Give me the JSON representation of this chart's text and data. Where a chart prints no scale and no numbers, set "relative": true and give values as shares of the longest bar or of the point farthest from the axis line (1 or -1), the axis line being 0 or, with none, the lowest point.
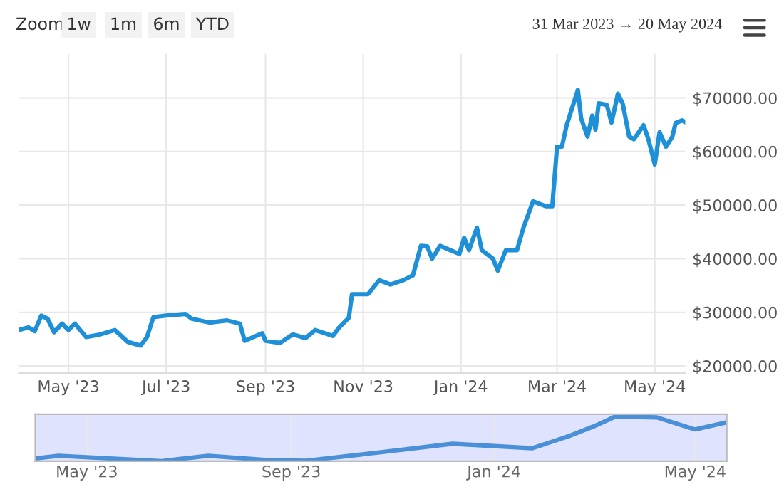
{
  "chart_data": [
    {
      "type": "line",
      "annotations": [
        "Zoom",
        "1w",
        "1m",
        "6m",
        "YTD",
        "31 Mar 2023 → 20 May 2024"
      ],
      "series": [
        {
          "color": "#1e90d8",
          "x": [
            "2023-03-31",
            "2023-04-06",
            "2023-04-10",
            "2023-04-14",
            "2023-04-18",
            "2023-04-22",
            "2023-04-27",
            "2023-05-01",
            "2023-05-05",
            "2023-05-12",
            "2023-05-21",
            "2023-05-30",
            "2023-06-07",
            "2023-06-15",
            "2023-06-19",
            "2023-06-23",
            "2023-07-01",
            "2023-07-13",
            "2023-07-17",
            "2023-07-28",
            "2023-08-08",
            "2023-08-16",
            "2023-08-19",
            "2023-08-30",
            "2023-09-01",
            "2023-09-10",
            "2023-09-18",
            "2023-09-26",
            "2023-10-02",
            "2023-10-13",
            "2023-10-17",
            "2023-10-23",
            "2023-10-25",
            "2023-11-04",
            "2023-11-11",
            "2023-11-18",
            "2023-11-26",
            "2023-12-02",
            "2023-12-07",
            "2023-12-11",
            "2023-12-14",
            "2023-12-19",
            "2023-12-31",
            "2024-01-03",
            "2024-01-06",
            "2024-01-11",
            "2024-01-14",
            "2024-01-21",
            "2024-01-24",
            "2024-01-29",
            "2024-02-05",
            "2024-02-09",
            "2024-02-15",
            "2024-02-23",
            "2024-02-27",
            "2024-03-01",
            "2024-03-04",
            "2024-03-07",
            "2024-03-14",
            "2024-03-16",
            "2024-03-20",
            "2024-03-23",
            "2024-03-25",
            "2024-03-27",
            "2024-04-01",
            "2024-04-04",
            "2024-04-08",
            "2024-04-11",
            "2024-04-15",
            "2024-04-18",
            "2024-04-24",
            "2024-04-27",
            "2024-05-01",
            "2024-05-04",
            "2024-05-08",
            "2024-05-12",
            "2024-05-14",
            "2024-05-18",
            "2024-05-20"
          ],
          "values": [
            26700,
            27200,
            26500,
            29400,
            28800,
            26300,
            27900,
            26700,
            27900,
            25400,
            25900,
            26700,
            24500,
            23800,
            25400,
            29100,
            29400,
            29700,
            28800,
            28100,
            28500,
            27900,
            24700,
            26100,
            24700,
            24300,
            25900,
            25200,
            26700,
            25600,
            27200,
            29000,
            33400,
            33400,
            36000,
            35200,
            36000,
            36900,
            42400,
            42300,
            40000,
            42400,
            40900,
            43900,
            41600,
            45800,
            41600,
            40000,
            37800,
            41600,
            41600,
            45800,
            50700,
            49800,
            49800,
            60900,
            60900,
            64900,
            71500,
            66200,
            62800,
            66700,
            64100,
            69000,
            68700,
            65400,
            70800,
            68900,
            62800,
            62300,
            64900,
            62300,
            57600,
            63600,
            60900,
            62800,
            65300,
            65800,
            65500
          ]
        }
      ],
      "xlim": [
        "2023-03-31",
        "2024-05-20"
      ],
      "xticks": [
        {
          "value": "2023-05-01",
          "label": "May '23"
        },
        {
          "value": "2023-07-01",
          "label": "Jul '23"
        },
        {
          "value": "2023-09-01",
          "label": "Sep '23"
        },
        {
          "value": "2023-11-01",
          "label": "Nov '23"
        },
        {
          "value": "2024-01-01",
          "label": "Jan '24"
        },
        {
          "value": "2024-03-01",
          "label": "Mar '24"
        },
        {
          "value": "2024-05-01",
          "label": "May '24"
        }
      ],
      "ylim": [
        18700,
        78200
      ],
      "yticks": [
        {
          "value": 20000,
          "label": "$20000.00"
        },
        {
          "value": 30000,
          "label": "$30000.00"
        },
        {
          "value": 40000,
          "label": "$40000.00"
        },
        {
          "value": 50000,
          "label": "$50000.00"
        },
        {
          "value": 60000,
          "label": "$60000.00"
        },
        {
          "value": 70000,
          "label": "$70000.00"
        }
      ],
      "grid": true
    },
    {
      "type": "line",
      "relative": true,
      "series": [
        {
          "color": "#4a90d9",
          "x": [
            "2023-03-31",
            "2023-04-14",
            "2023-06-15",
            "2023-07-13",
            "2023-08-19",
            "2023-09-10",
            "2023-10-25",
            "2023-12-07",
            "2024-01-24",
            "2024-02-15",
            "2024-03-01",
            "2024-03-14",
            "2024-04-08",
            "2024-05-01",
            "2024-05-20"
          ],
          "values": [
            0.06,
            0.12,
            0,
            0.12,
            0.02,
            0.01,
            0.2,
            0.39,
            0.29,
            0.56,
            0.78,
            1,
            0.98,
            0.71,
            0.87
          ]
        }
      ],
      "xlim": [
        "2023-03-31",
        "2024-05-20"
      ],
      "xticks": [
        {
          "value": "2023-05-01",
          "label": "May '23"
        },
        {
          "value": "2023-09-01",
          "label": "Sep '23"
        },
        {
          "value": "2024-01-01",
          "label": "Jan '24"
        },
        {
          "value": "2024-05-01",
          "label": "May '24"
        }
      ],
      "grid": "x"
    }
  ]
}
